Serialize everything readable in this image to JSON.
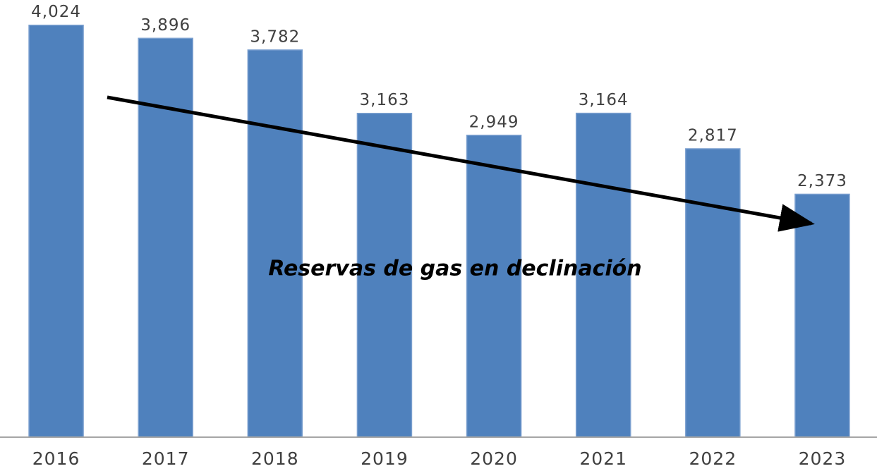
{
  "chart_data": {
    "type": "bar",
    "annotation": "Reservas de gas en declinación",
    "categories": [
      "2016",
      "2017",
      "2018",
      "2019",
      "2020",
      "2021",
      "2022",
      "2023"
    ],
    "values": [
      4024,
      3896,
      3782,
      3163,
      2949,
      3164,
      2817,
      2373
    ],
    "value_labels": [
      "4,024",
      "3,896",
      "3,782",
      "3,163",
      "2,949",
      "3,164",
      "2,817",
      "2,373"
    ],
    "color": "#4f81bd",
    "ylim": [
      0,
      4270
    ]
  }
}
